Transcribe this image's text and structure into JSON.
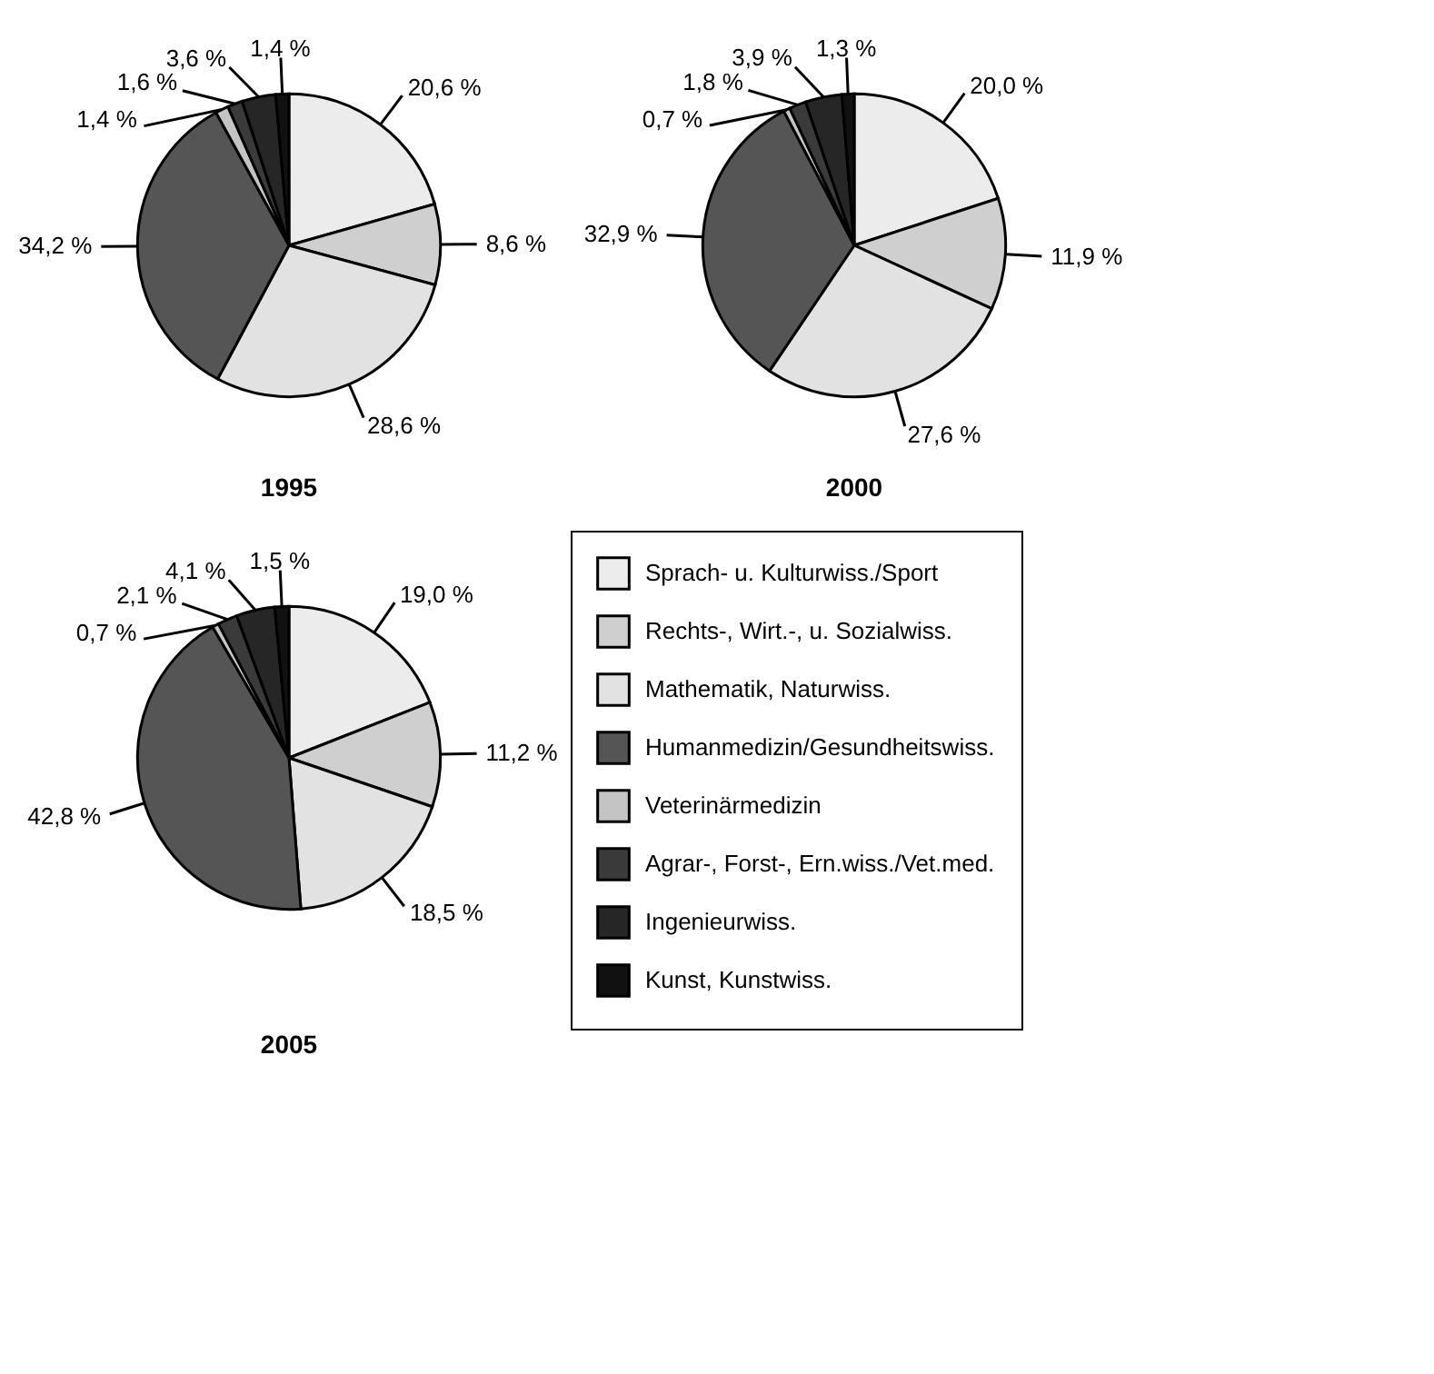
{
  "chart_data": [
    {
      "type": "pie",
      "title": "1995",
      "categories": [
        null,
        null,
        null,
        null,
        null,
        null,
        null,
        null
      ],
      "values": [
        20.6,
        8.6,
        28.6,
        34.2,
        1.4,
        1.6,
        3.6,
        1.4
      ],
      "value_labels": [
        "20,6 %",
        "8,6 %",
        "28,6 %",
        "34,2 %",
        "1,4 %",
        "1,6 %",
        "3,6 %",
        "1,4 %"
      ],
      "colors": [
        "#ececec",
        "#cfcfcf",
        "#e2e2e2",
        "#555555",
        "#c4c4c4",
        "#3a3a3a",
        "#262626",
        "#111111"
      ],
      "legend": false
    },
    {
      "type": "pie",
      "title": "2000",
      "categories": [
        null,
        null,
        null,
        null,
        null,
        null,
        null,
        null
      ],
      "values": [
        20.0,
        11.9,
        27.6,
        32.9,
        0.7,
        1.8,
        3.9,
        1.3
      ],
      "value_labels": [
        "20,0 %",
        "11,9 %",
        "27,6 %",
        "32,9 %",
        "0,7 %",
        "1,8 %",
        "3,9 %",
        "1,3 %"
      ],
      "colors": [
        "#ececec",
        "#cfcfcf",
        "#e2e2e2",
        "#555555",
        "#c4c4c4",
        "#3a3a3a",
        "#262626",
        "#111111"
      ],
      "legend": false
    },
    {
      "type": "pie",
      "title": "2005",
      "categories": [
        "Sprach- u. Kulturwiss./Sport",
        "Rechts-, Wirt.-, u. Sozialwiss.",
        "Mathematik, Naturwiss.",
        "Humanmedizin/Gesundheitswiss.",
        "Veterinärmedizin",
        "Agrar-, Forst-, Ern.wiss./Vet.med.",
        "Ingenieurwiss.",
        "Kunst, Kunstwiss."
      ],
      "values": [
        19.0,
        11.2,
        18.5,
        42.8,
        0.7,
        2.1,
        4.1,
        1.5
      ],
      "value_labels": [
        "19,0 %",
        "11,2 %",
        "18,5 %",
        "42,8 %",
        "0,7 %",
        "2,1 %",
        "4,1 %",
        "1,5 %"
      ],
      "colors": [
        "#ececec",
        "#cfcfcf",
        "#e2e2e2",
        "#555555",
        "#c4c4c4",
        "#3a3a3a",
        "#262626",
        "#111111"
      ],
      "legend": "right"
    }
  ]
}
